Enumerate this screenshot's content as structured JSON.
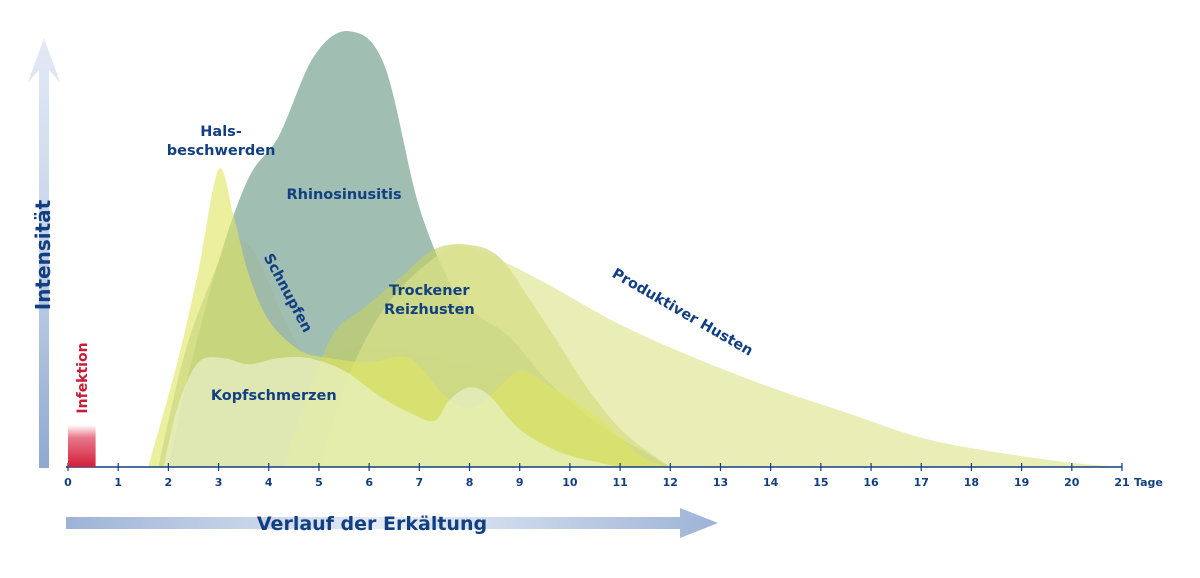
{
  "chart_data": {
    "type": "area",
    "title": "",
    "xlabel": "Verlauf der Erkältung",
    "ylabel": "Intensität",
    "x_unit": "Tage",
    "xlim": [
      0,
      21
    ],
    "ylim": [
      0,
      10
    ],
    "x_ticks": [
      "0",
      "1",
      "2",
      "3",
      "4",
      "5",
      "6",
      "7",
      "8",
      "9",
      "10",
      "11",
      "12",
      "13",
      "14",
      "15",
      "16",
      "17",
      "18",
      "19",
      "20",
      "21"
    ],
    "infection_label": "Infektion",
    "infection_x": [
      0,
      0.55
    ],
    "series": [
      {
        "name": "Rhinosinusitis",
        "color": "#8fb3a3",
        "points": [
          [
            2,
            0
          ],
          [
            2.4,
            2.2
          ],
          [
            3,
            4.9
          ],
          [
            3.6,
            6.9
          ],
          [
            4.2,
            7.9
          ],
          [
            4.9,
            9.8
          ],
          [
            5.6,
            10.4
          ],
          [
            6.3,
            9.6
          ],
          [
            7,
            6.2
          ],
          [
            7.7,
            4.2
          ],
          [
            8.2,
            3.6
          ],
          [
            8.8,
            3.1
          ],
          [
            9.6,
            2.0
          ],
          [
            10.6,
            1.0
          ],
          [
            11.5,
            0.35
          ],
          [
            12,
            0
          ]
        ],
        "label_lines": [
          "Rhinosinusitis"
        ],
        "label_at": [
          5.5,
          6.4
        ]
      },
      {
        "name": "Schnupfen",
        "color": "#9fb8a3",
        "points": [
          [
            1.8,
            0
          ],
          [
            2.3,
            2.6
          ],
          [
            2.8,
            4.3
          ],
          [
            3.2,
            5.3
          ],
          [
            3.6,
            5.3
          ],
          [
            4,
            4.4
          ],
          [
            4.4,
            3.3
          ],
          [
            4.8,
            2.6
          ],
          [
            5.3,
            2.7
          ],
          [
            6,
            2.9
          ],
          [
            7,
            2.7
          ],
          [
            8,
            2.4
          ],
          [
            9,
            2.2
          ],
          [
            10,
            1.4
          ],
          [
            11,
            0.6
          ],
          [
            12,
            0
          ]
        ],
        "label_lines": [
          "Schnupfen"
        ],
        "label_at": [
          4.3,
          4.1
        ],
        "label_rotate": 62
      },
      {
        "name": "Trockener Reizhusten",
        "color": "#c5d262",
        "points": [
          [
            4.3,
            0
          ],
          [
            4.8,
            1.8
          ],
          [
            5.3,
            3.2
          ],
          [
            5.9,
            3.8
          ],
          [
            6.6,
            4.5
          ],
          [
            7.3,
            5.2
          ],
          [
            8,
            5.3
          ],
          [
            8.6,
            5.0
          ],
          [
            9.2,
            4.0
          ],
          [
            9.8,
            2.9
          ],
          [
            10.4,
            1.8
          ],
          [
            11.1,
            0.8
          ],
          [
            12,
            0
          ]
        ],
        "label_lines": [
          "Trockener",
          "Reizhusten"
        ],
        "label_at": [
          7.2,
          4.1
        ]
      },
      {
        "name": "Produktiver Husten",
        "color": "#dbe48a",
        "points": [
          [
            5,
            0
          ],
          [
            5.5,
            1.9
          ],
          [
            6,
            3.2
          ],
          [
            6.5,
            4.1
          ],
          [
            7.2,
            4.9
          ],
          [
            7.8,
            5.3
          ],
          [
            8.5,
            5.0
          ],
          [
            9.5,
            4.4
          ],
          [
            11,
            3.4
          ],
          [
            12.5,
            2.6
          ],
          [
            14,
            1.9
          ],
          [
            15.5,
            1.3
          ],
          [
            17,
            0.7
          ],
          [
            18.5,
            0.35
          ],
          [
            20,
            0.1
          ],
          [
            21,
            0
          ]
        ],
        "label_lines": [
          "Produktiver Husten"
        ],
        "label_at": [
          12.2,
          3.6
        ],
        "label_rotate": 30
      },
      {
        "name": "Halsbeschwerden",
        "color": "#dfe563",
        "points": [
          [
            1.6,
            0
          ],
          [
            2.2,
            2.6
          ],
          [
            2.6,
            4.7
          ],
          [
            3,
            7.1
          ],
          [
            3.3,
            6.0
          ],
          [
            3.6,
            4.6
          ],
          [
            4,
            3.5
          ],
          [
            4.6,
            2.8
          ],
          [
            5.2,
            2.6
          ],
          [
            6,
            2.5
          ],
          [
            6.8,
            2.6
          ],
          [
            7.5,
            1.7
          ],
          [
            8,
            1.4
          ],
          [
            8.5,
            1.8
          ],
          [
            9,
            2.3
          ],
          [
            9.5,
            2.0
          ],
          [
            10.3,
            1.4
          ],
          [
            11,
            0.7
          ],
          [
            11.5,
            0.2
          ],
          [
            12,
            0
          ]
        ],
        "label_lines": [
          "Hals-",
          "beschwerden"
        ],
        "label_at": [
          3.05,
          7.9
        ]
      },
      {
        "name": "Kopfschmerzen",
        "color": "#eef3d4",
        "points": [
          [
            1.9,
            0
          ],
          [
            2.2,
            1.5
          ],
          [
            2.6,
            2.5
          ],
          [
            3.1,
            2.6
          ],
          [
            3.6,
            2.45
          ],
          [
            4.2,
            2.6
          ],
          [
            4.8,
            2.6
          ],
          [
            5.5,
            2.3
          ],
          [
            6.2,
            1.7
          ],
          [
            6.8,
            1.3
          ],
          [
            7.3,
            1.1
          ],
          [
            7.6,
            1.6
          ],
          [
            8,
            1.9
          ],
          [
            8.4,
            1.7
          ],
          [
            9,
            0.9
          ],
          [
            9.8,
            0.35
          ],
          [
            10.6,
            0.1
          ],
          [
            11,
            0
          ]
        ],
        "label_lines": [
          "Kopfschmerzen"
        ],
        "label_at": [
          4.1,
          1.6
        ]
      }
    ]
  }
}
